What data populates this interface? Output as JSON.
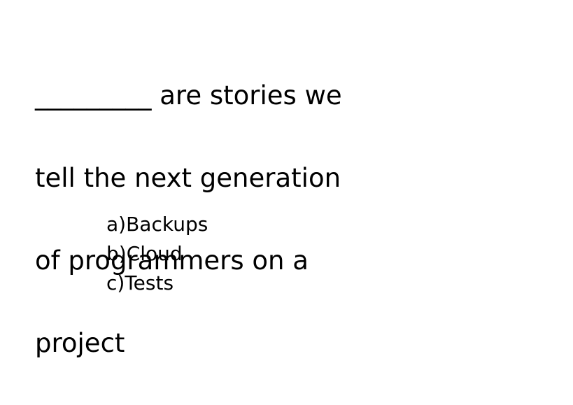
{
  "question": {
    "lines": [
      "_________ are stories we",
      "tell the next generation",
      "of programmers on a",
      "project"
    ]
  },
  "options": [
    "a)Backups",
    "b)Cloud",
    "c)Tests"
  ]
}
